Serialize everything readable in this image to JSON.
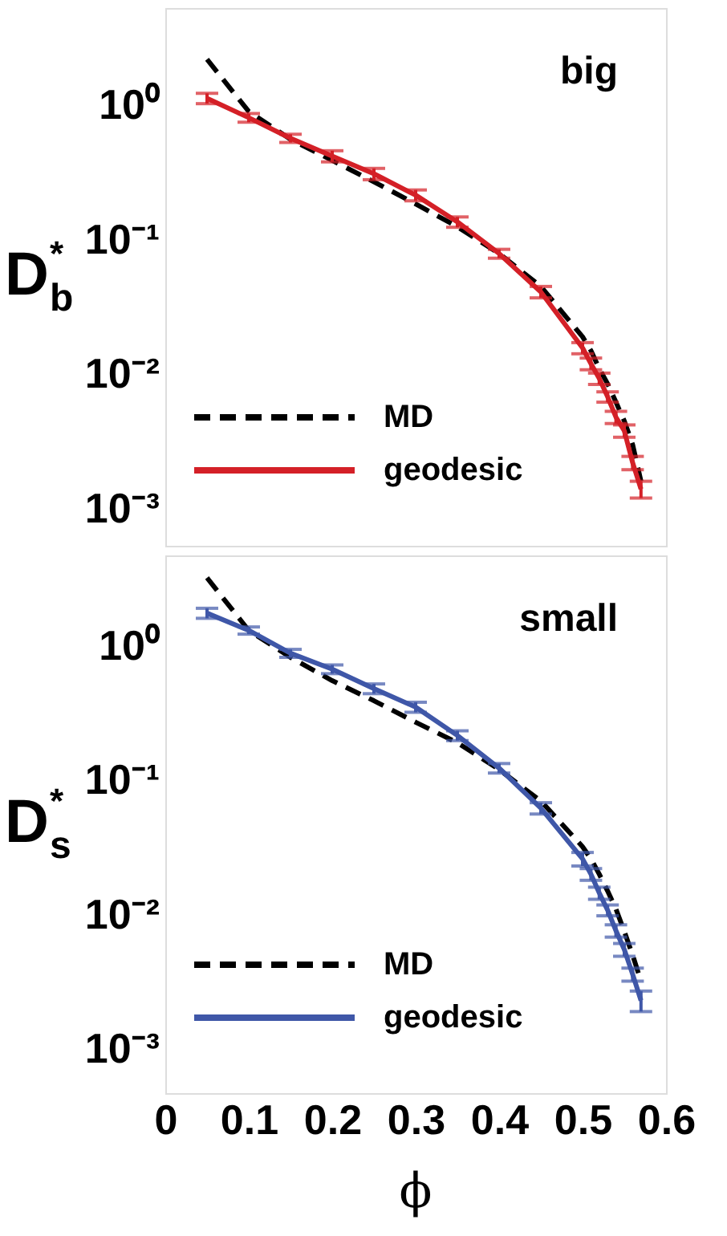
{
  "chart_data": [
    {
      "type": "line",
      "annotations": [
        "big"
      ],
      "ylabel": "D$_{b}$$^{*}$",
      "log": "y",
      "legend": "bottom left",
      "tick_labels": "y",
      "xlim": [
        0,
        0.6
      ],
      "xticks": [
        0,
        0.1,
        0.2,
        0.3,
        0.4,
        0.5,
        0.6
      ],
      "ylim": [
        0.00053,
        5.3
      ],
      "yticks": [
        {
          "value": 0.001,
          "label": "10⁻³"
        },
        {
          "value": 0.01,
          "label": "10⁻²"
        },
        {
          "value": 0.1,
          "label": "10⁻¹"
        },
        {
          "value": 1,
          "label": "10⁰"
        }
      ],
      "x": [
        0.05,
        0.1,
        0.15,
        0.2,
        0.25,
        0.3,
        0.35,
        0.4,
        0.45,
        0.5,
        0.51,
        0.52,
        0.53,
        0.54,
        0.55,
        0.56,
        0.57
      ],
      "series": [
        {
          "name": "MD",
          "color": "#000000",
          "line_style": "dashed",
          "values": [
            2.2,
            0.9,
            0.56,
            0.39,
            0.27,
            0.185,
            0.125,
            0.079,
            0.045,
            0.019,
            0.015,
            0.011,
            0.0085,
            0.0062,
            0.0045,
            0.003,
            0.0016
          ]
        },
        {
          "name": "geodesic",
          "color": "#d42027",
          "line_style": "solid",
          "values": [
            1.13,
            0.81,
            0.57,
            0.42,
            0.31,
            0.215,
            0.136,
            0.079,
            0.041,
            0.0157,
            0.012,
            0.0093,
            0.0068,
            0.0048,
            0.0038,
            0.0022,
            0.0014
          ],
          "errors": [
            0.1,
            0.06,
            0.04,
            0.04,
            0.03,
            0.02,
            0.012,
            0.006,
            0.004,
            0.0015,
            0.0012,
            0.0009,
            0.0006,
            0.0005,
            0.0004,
            0.00025,
            0.0002
          ]
        }
      ]
    },
    {
      "type": "line",
      "annotations": [
        "small"
      ],
      "ylabel": "D$_{s}$$^{*}$",
      "xlabel": "ϕ",
      "log": "y",
      "legend": "bottom left",
      "xlim": [
        0,
        0.6
      ],
      "xticks": [
        0,
        0.1,
        0.2,
        0.3,
        0.4,
        0.5,
        0.6
      ],
      "ylim": [
        0.00047,
        4.7
      ],
      "yticks": [
        {
          "value": 0.001,
          "label": "10⁻³"
        },
        {
          "value": 0.01,
          "label": "10⁻²"
        },
        {
          "value": 0.1,
          "label": "10⁻¹"
        },
        {
          "value": 1,
          "label": "10⁰"
        }
      ],
      "x": [
        0.05,
        0.1,
        0.15,
        0.2,
        0.25,
        0.3,
        0.35,
        0.4,
        0.45,
        0.5,
        0.51,
        0.52,
        0.53,
        0.54,
        0.55,
        0.56,
        0.57
      ],
      "series": [
        {
          "name": "MD",
          "color": "#000000",
          "line_style": "dashed",
          "values": [
            3.2,
            1.3,
            0.82,
            0.55,
            0.39,
            0.27,
            0.19,
            0.12,
            0.07,
            0.032,
            0.026,
            0.02,
            0.015,
            0.011,
            0.0075,
            0.005,
            0.0032
          ]
        },
        {
          "name": "geodesic",
          "color": "#3f57a8",
          "line_style": "solid",
          "values": [
            1.75,
            1.3,
            0.88,
            0.67,
            0.48,
            0.35,
            0.215,
            0.123,
            0.062,
            0.026,
            0.02,
            0.0145,
            0.0108,
            0.0076,
            0.0055,
            0.0036,
            0.0023
          ],
          "errors": [
            0.15,
            0.08,
            0.06,
            0.05,
            0.04,
            0.03,
            0.018,
            0.01,
            0.006,
            0.003,
            0.002,
            0.0015,
            0.001,
            0.0008,
            0.0006,
            0.0004,
            0.0004
          ]
        }
      ]
    }
  ]
}
